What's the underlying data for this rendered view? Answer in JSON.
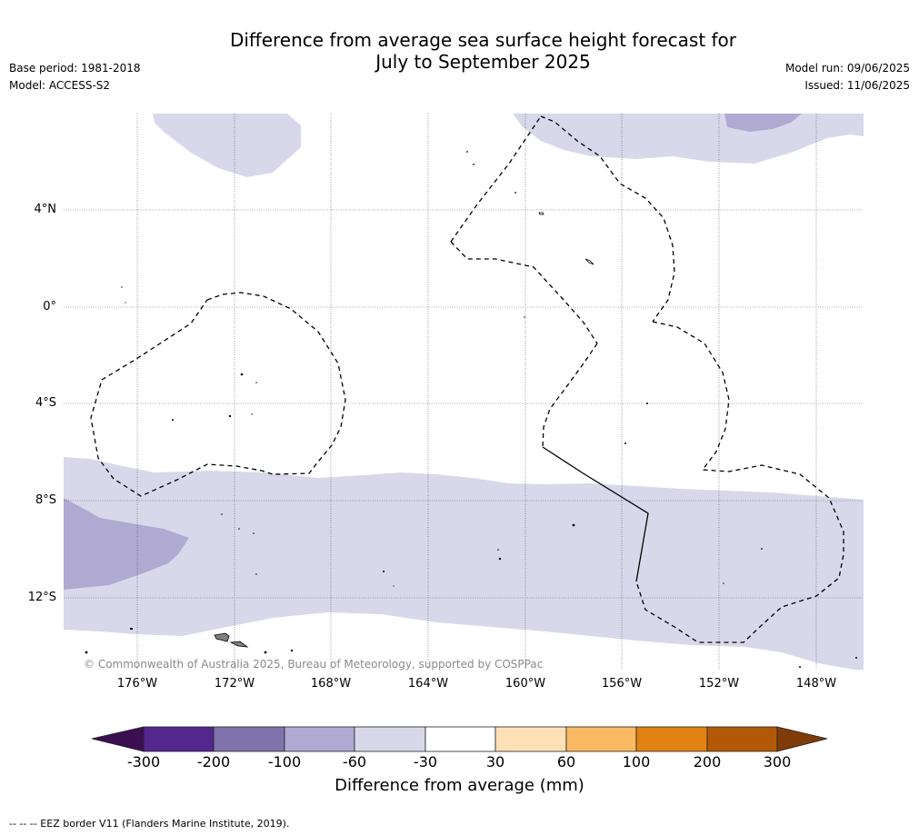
{
  "title": {
    "line1": "Difference from average sea surface height forecast for",
    "line2": "July to September 2025"
  },
  "meta": {
    "base_period": "Base period: 1981-2018",
    "model": "Model: ACCESS-S2",
    "model_run": "Model run: 09/06/2025",
    "issued": "Issued: 11/06/2025"
  },
  "map": {
    "lat_labels": [
      "4°N",
      "0°",
      "4°S",
      "8°S",
      "12°S"
    ],
    "lon_labels": [
      "176°W",
      "172°W",
      "168°W",
      "164°W",
      "160°W",
      "156°W",
      "152°W",
      "148°W"
    ],
    "copyright": "© Commonwealth of Australia 2025, Bureau of Meteorology, supported by COSPPac",
    "colors": {
      "light_purple": "#d8d8ea",
      "mid_purple": "#b0a9d2",
      "grid": "#555555",
      "land": "#808080"
    }
  },
  "colorbar": {
    "title": "Difference from average (mm)",
    "ticks": [
      "-300",
      "-200",
      "-100",
      "-60",
      "-30",
      "30",
      "60",
      "100",
      "200",
      "300"
    ],
    "colors": [
      "#3b0f52",
      "#54278f",
      "#8073ac",
      "#b0a9d2",
      "#d8d8ea",
      "#ffffff",
      "#fde0b6",
      "#f9b862",
      "#e08214",
      "#b35806",
      "#7f3b08"
    ]
  },
  "footnote": "--  --  -- EEZ border V11 (Flanders Marine Institute, 2019)."
}
